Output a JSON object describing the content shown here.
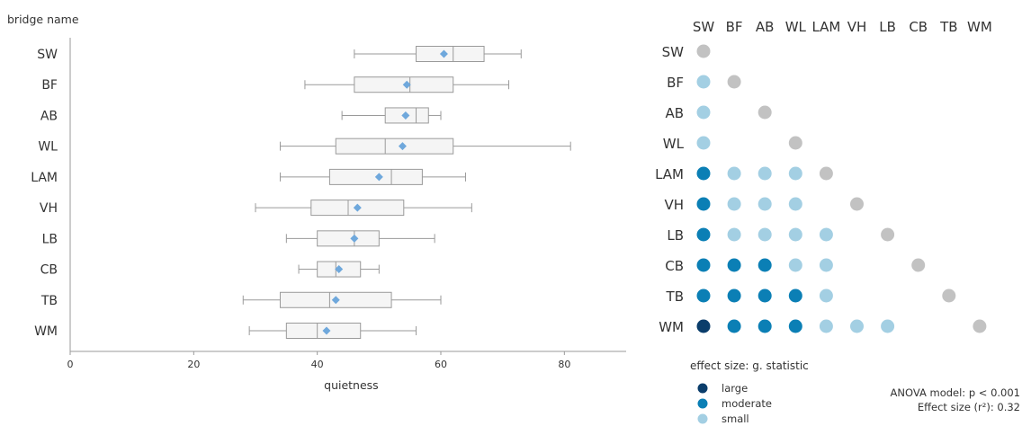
{
  "chart_data": [
    {
      "type": "boxplot",
      "ylabel": "bridge name",
      "xlabel": "quietness",
      "xlim": [
        0,
        90
      ],
      "xticks": [
        "0",
        "20",
        "40",
        "60",
        "80"
      ],
      "xtick_values": [
        0,
        20,
        40,
        60,
        80
      ],
      "orientation": "horizontal",
      "box_fill": "#f5f5f5",
      "box_stroke": "#9a9a9a",
      "mean_marker_color": "#6fa8dc",
      "categories": [
        "SW",
        "BF",
        "AB",
        "WL",
        "LAM",
        "VH",
        "LB",
        "CB",
        "TB",
        "WM"
      ],
      "boxes": [
        {
          "name": "SW",
          "min": 46,
          "q1": 56,
          "median": 62,
          "q3": 67,
          "max": 73,
          "mean": 60.5
        },
        {
          "name": "BF",
          "min": 38,
          "q1": 46,
          "median": 55,
          "q3": 62,
          "max": 71,
          "mean": 54.5
        },
        {
          "name": "AB",
          "min": 44,
          "q1": 51,
          "median": 56,
          "q3": 58,
          "max": 60,
          "mean": 54.3
        },
        {
          "name": "WL",
          "min": 34,
          "q1": 43,
          "median": 51,
          "q3": 62,
          "max": 81,
          "mean": 53.8
        },
        {
          "name": "LAM",
          "min": 34,
          "q1": 42,
          "median": 52,
          "q3": 57,
          "max": 64,
          "mean": 50
        },
        {
          "name": "VH",
          "min": 30,
          "q1": 39,
          "median": 45,
          "q3": 54,
          "max": 65,
          "mean": 46.5
        },
        {
          "name": "LB",
          "min": 35,
          "q1": 40,
          "median": 46,
          "q3": 50,
          "max": 59,
          "mean": 46
        },
        {
          "name": "CB",
          "min": 37,
          "q1": 40,
          "median": 43,
          "q3": 47,
          "max": 50,
          "mean": 43.5
        },
        {
          "name": "TB",
          "min": 28,
          "q1": 34,
          "median": 42,
          "q3": 52,
          "max": 60,
          "mean": 43
        },
        {
          "name": "WM",
          "min": 29,
          "q1": 35,
          "median": 40,
          "q3": 47,
          "max": 56,
          "mean": 41.5
        }
      ]
    },
    {
      "type": "heatmap",
      "labels": [
        "SW",
        "BF",
        "AB",
        "WL",
        "LAM",
        "VH",
        "LB",
        "CB",
        "TB",
        "WM"
      ],
      "legend_title": "effect size: g. statistic",
      "level_colors": {
        "self": "#c2c2c2",
        "small": "#a3cfe3",
        "moderate": "#0b7fb5",
        "large": "#0a3d6b"
      },
      "legend": [
        {
          "level": "large",
          "label": "large"
        },
        {
          "level": "moderate",
          "label": "moderate"
        },
        {
          "level": "small",
          "label": "small"
        }
      ],
      "cells": [
        [
          "self"
        ],
        [
          "small",
          "self"
        ],
        [
          "small",
          null,
          "self"
        ],
        [
          "small",
          null,
          null,
          "self"
        ],
        [
          "moderate",
          "small",
          "small",
          "small",
          "self"
        ],
        [
          "moderate",
          "small",
          "small",
          "small",
          null,
          "self"
        ],
        [
          "moderate",
          "small",
          "small",
          "small",
          "small",
          null,
          "self"
        ],
        [
          "moderate",
          "moderate",
          "moderate",
          "small",
          "small",
          null,
          null,
          "self"
        ],
        [
          "moderate",
          "moderate",
          "moderate",
          "moderate",
          "small",
          null,
          null,
          null,
          "self"
        ],
        [
          "large",
          "moderate",
          "moderate",
          "moderate",
          "small",
          "small",
          "small",
          null,
          null,
          "self"
        ]
      ]
    }
  ],
  "notes": {
    "anova_p": "ANOVA model: p < 0.001",
    "effect_size": "Effect size (r²): 0.32"
  }
}
